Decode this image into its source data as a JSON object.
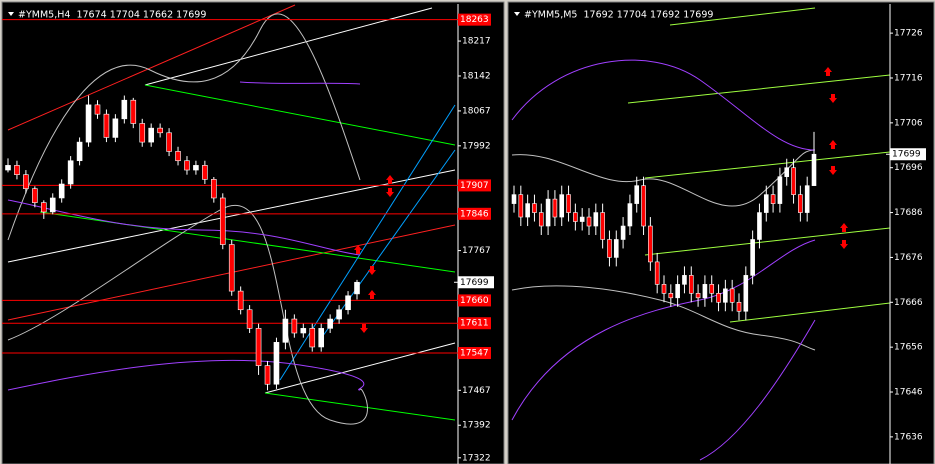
{
  "chart_data": [
    {
      "type": "candlestick",
      "title": "#YMM5,H4  17674 17704 17662 17699",
      "open": [
        17940,
        17950,
        17930,
        17900,
        17870,
        17850,
        17880,
        17910,
        17960,
        18000,
        18080,
        18060,
        18010,
        18050,
        18090,
        18040,
        18000,
        18030,
        18020,
        17980,
        17960,
        17940,
        17950,
        17920,
        17880,
        17780,
        17680,
        17640,
        17600,
        17520,
        17480,
        17570,
        17620,
        17590,
        17600,
        17560,
        17600,
        17620,
        17640,
        17674
      ],
      "high": [
        17965,
        17960,
        17940,
        17905,
        17875,
        17890,
        17920,
        17970,
        18010,
        18100,
        18090,
        18070,
        18060,
        18100,
        18095,
        18050,
        18040,
        18040,
        18030,
        17990,
        17970,
        17960,
        17960,
        17925,
        17890,
        17790,
        17690,
        17650,
        17610,
        17530,
        17580,
        17640,
        17630,
        17610,
        17610,
        17610,
        17630,
        17650,
        17680,
        17704
      ],
      "low": [
        17935,
        17920,
        17890,
        17860,
        17835,
        17845,
        17870,
        17900,
        17950,
        17990,
        18050,
        18000,
        18000,
        18040,
        18030,
        17990,
        17990,
        18010,
        17970,
        17950,
        17930,
        17930,
        17910,
        17870,
        17770,
        17670,
        17630,
        17590,
        17500,
        17467,
        17470,
        17555,
        17580,
        17580,
        17550,
        17550,
        17590,
        17610,
        17630,
        17662
      ],
      "close": [
        17950,
        17930,
        17900,
        17870,
        17850,
        17880,
        17910,
        17960,
        18000,
        18080,
        18060,
        18010,
        18050,
        18090,
        18040,
        18000,
        18030,
        18020,
        17980,
        17960,
        17940,
        17950,
        17920,
        17880,
        17780,
        17680,
        17640,
        17600,
        17520,
        17480,
        17570,
        17620,
        17590,
        17600,
        17560,
        17600,
        17620,
        17640,
        17670,
        17699
      ],
      "ylim": [
        17313,
        18288
      ],
      "yticks": [
        18217,
        18142,
        18067,
        17992,
        17767,
        17467,
        17392,
        17322
      ],
      "levels": [
        18263,
        17907,
        17846,
        17660,
        17611,
        17547
      ],
      "last": 17699,
      "up_color": "#ffffff",
      "down_color": "#ff0000",
      "level_color": "#ff0000"
    },
    {
      "type": "candlestick",
      "title": "#YMM5,M5  17692 17704 17692 17699",
      "open": [
        17688,
        17690,
        17685,
        17688,
        17686,
        17683,
        17689,
        17685,
        17690,
        17686,
        17684,
        17685,
        17683,
        17686,
        17680,
        17676,
        17680,
        17683,
        17688,
        17692,
        17683,
        17675,
        17670,
        17668,
        17667,
        17670,
        17672,
        17668,
        17667,
        17670,
        17668,
        17666,
        17669,
        17666,
        17664,
        17672,
        17680,
        17686,
        17690,
        17688,
        17694,
        17696,
        17690,
        17686,
        17692
      ],
      "high": [
        17692,
        17692,
        17690,
        17690,
        17688,
        17691,
        17691,
        17692,
        17692,
        17688,
        17687,
        17687,
        17688,
        17688,
        17682,
        17682,
        17685,
        17690,
        17694,
        17694,
        17685,
        17677,
        17672,
        17670,
        17672,
        17674,
        17674,
        17670,
        17672,
        17672,
        17670,
        17671,
        17671,
        17668,
        17674,
        17682,
        17688,
        17692,
        17692,
        17696,
        17698,
        17698,
        17692,
        17694,
        17704
      ],
      "low": [
        17686,
        17683,
        17683,
        17684,
        17681,
        17681,
        17683,
        17683,
        17684,
        17682,
        17682,
        17681,
        17681,
        17678,
        17674,
        17674,
        17678,
        17681,
        17686,
        17681,
        17673,
        17668,
        17666,
        17665,
        17665,
        17668,
        17666,
        17665,
        17665,
        17666,
        17664,
        17664,
        17664,
        17662,
        17662,
        17670,
        17678,
        17684,
        17686,
        17686,
        17692,
        17688,
        17684,
        17684,
        17692
      ],
      "close": [
        17690,
        17685,
        17688,
        17686,
        17683,
        17689,
        17685,
        17690,
        17686,
        17684,
        17685,
        17683,
        17686,
        17680,
        17676,
        17680,
        17683,
        17688,
        17692,
        17683,
        17675,
        17670,
        17668,
        17667,
        17670,
        17672,
        17668,
        17667,
        17670,
        17668,
        17666,
        17669,
        17666,
        17664,
        17672,
        17680,
        17686,
        17690,
        17688,
        17694,
        17696,
        17690,
        17686,
        17692,
        17699
      ],
      "ylim": [
        17630.4,
        17731.6
      ],
      "yticks": [
        17726,
        17716,
        17706,
        17696,
        17686,
        17676,
        17666,
        17656,
        17646,
        17636
      ],
      "levels": [],
      "last": 17699,
      "up_color": "#ffffff",
      "down_color": "#ff0000",
      "level_color": "#ff0000"
    }
  ]
}
